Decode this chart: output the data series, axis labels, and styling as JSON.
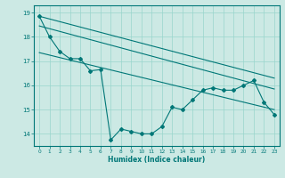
{
  "xlabel": "Humidex (Indice chaleur)",
  "background_color": "#cce9e4",
  "grid_color": "#99d5cc",
  "line_color": "#007777",
  "xlim": [
    -0.5,
    23.5
  ],
  "ylim": [
    13.5,
    19.3
  ],
  "yticks": [
    14,
    15,
    16,
    17,
    18,
    19
  ],
  "xticks": [
    0,
    1,
    2,
    3,
    4,
    5,
    6,
    7,
    8,
    9,
    10,
    11,
    12,
    13,
    14,
    15,
    16,
    17,
    18,
    19,
    20,
    21,
    22,
    23
  ],
  "series_jagged": [
    18.85,
    18.0,
    17.4,
    17.1,
    17.1,
    16.6,
    16.65,
    13.75,
    14.2,
    14.1,
    14.0,
    14.0,
    14.3,
    15.1,
    15.0,
    15.4,
    15.8,
    15.9,
    15.8,
    15.8,
    16.0,
    16.2,
    15.3,
    14.8
  ],
  "line1_x": [
    0,
    23
  ],
  "line1_y": [
    18.85,
    16.3
  ],
  "line2_x": [
    0,
    23
  ],
  "line2_y": [
    18.45,
    15.85
  ],
  "line3_x": [
    0,
    23
  ],
  "line3_y": [
    17.35,
    15.0
  ]
}
